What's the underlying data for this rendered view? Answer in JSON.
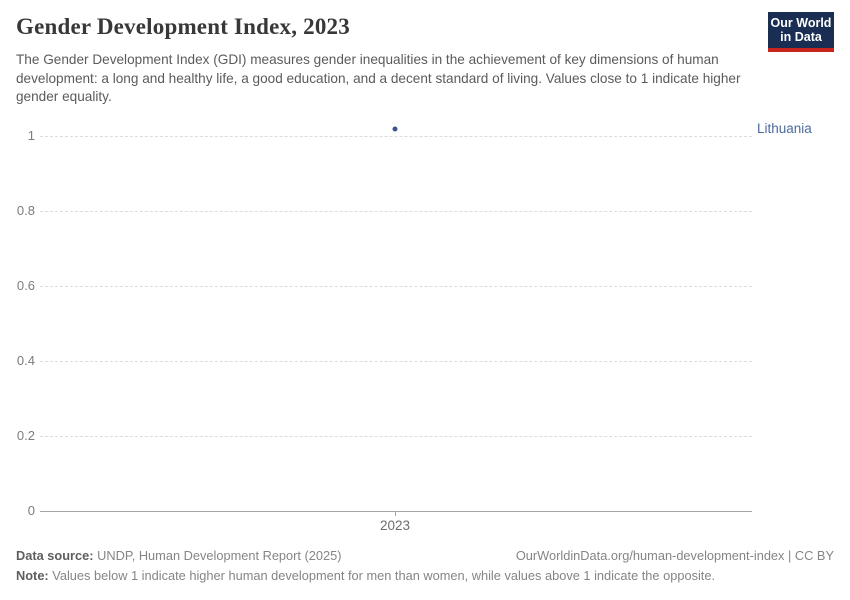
{
  "header": {
    "title": "Gender Development Index, 2023",
    "subtitle": "The Gender Development Index (GDI) measures gender inequalities in the achievement of key dimensions of human development: a long and healthy life, a good education, and a decent standard of living. Values close to 1 indicate higher gender equality.",
    "logo": {
      "line1": "Our World",
      "line2": "in Data",
      "bg_color": "#1A2E54",
      "bar_color": "#C9251D"
    }
  },
  "chart_data": {
    "type": "scatter",
    "x": [
      2023
    ],
    "series": [
      {
        "name": "Lithuania",
        "values": [
          1.02
        ],
        "color": "#4C6A9C"
      }
    ],
    "title": "Gender Development Index, 2023",
    "xlabel": "",
    "ylabel": "",
    "ylim": [
      0,
      1.05
    ],
    "yticks": [
      0,
      0.2,
      0.4,
      0.6,
      0.8,
      1
    ],
    "xticks": [
      "2023"
    ],
    "grid": "horizontal-dashed",
    "legend_position": "right-entity-label",
    "entity_label": "Lithuania",
    "point_color": "#3E548F",
    "gridline_color": "#dcdcdc",
    "axis_color": "#a5a5a5"
  },
  "footer": {
    "data_source_label": "Data source:",
    "data_source": "UNDP, Human Development Report (2025)",
    "url_text": "OurWorldinData.org/human-development-index | CC BY",
    "note_label": "Note:",
    "note": "Values below 1 indicate higher human development for men than women, while values above 1 indicate the opposite."
  }
}
